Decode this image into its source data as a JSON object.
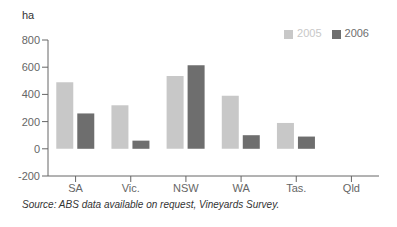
{
  "chart_data": {
    "type": "bar",
    "ylabel": "ha",
    "categories": [
      "SA",
      "Vic.",
      "NSW",
      "WA",
      "Tas.",
      "Qld"
    ],
    "series": [
      {
        "name": "2005",
        "color": "#c8c8c8",
        "values": [
          490,
          320,
          535,
          390,
          190,
          0
        ]
      },
      {
        "name": "2006",
        "color": "#6e6e6e",
        "values": [
          260,
          60,
          615,
          100,
          90,
          0
        ]
      }
    ],
    "ylim": [
      -200,
      800
    ],
    "yticks": [
      -200,
      0,
      200,
      400,
      600,
      800
    ],
    "grid": false,
    "legend": "upper right",
    "annotations": [
      "Source: ABS data available on request, Vineyards Survey."
    ]
  }
}
